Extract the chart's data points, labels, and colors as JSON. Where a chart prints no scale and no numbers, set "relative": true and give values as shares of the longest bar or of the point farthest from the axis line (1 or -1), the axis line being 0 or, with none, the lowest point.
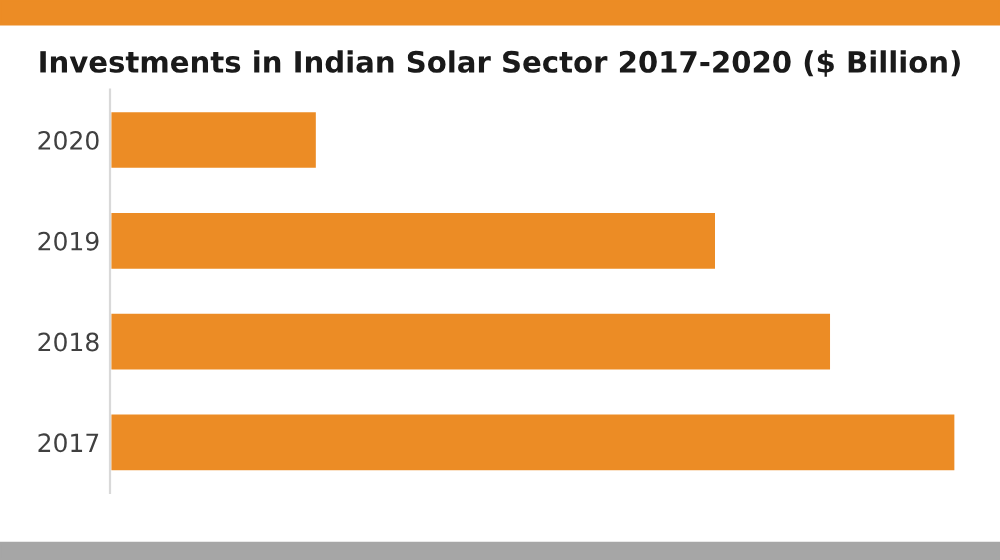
{
  "chart_data": {
    "type": "bar",
    "orientation": "horizontal",
    "relative": true,
    "title": "Investments in Indian Solar Sector 2017-2020 ($ Billion)",
    "categories": [
      "2020",
      "2019",
      "2018",
      "2017"
    ],
    "values": [
      0.245,
      0.717,
      0.853,
      1
    ],
    "color": "#ec8c25",
    "grid": false
  }
}
